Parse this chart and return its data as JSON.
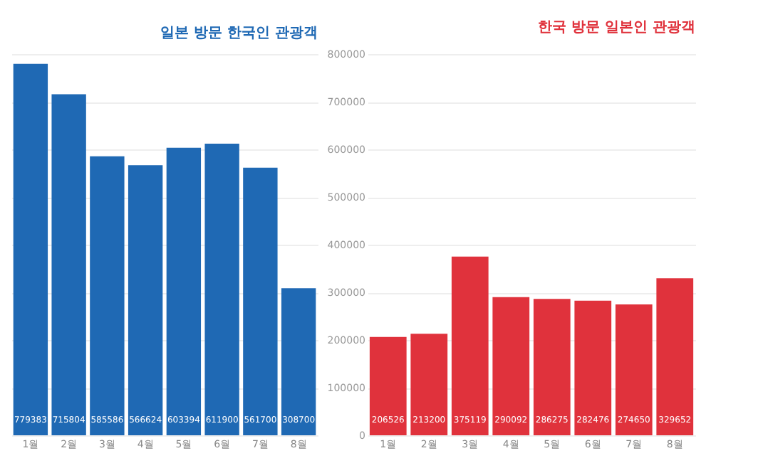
{
  "chart_data": [
    {
      "type": "bar",
      "title": "일본 방문 한국인 관광객",
      "categories": [
        "1월",
        "2월",
        "3월",
        "4월",
        "5월",
        "6월",
        "7월",
        "8월"
      ],
      "series": [
        {
          "color": "#1f69b4",
          "values": [
            779383,
            715804,
            585586,
            566624,
            603394,
            611900,
            561700,
            308700
          ]
        }
      ],
      "ylim": [
        0,
        800000
      ],
      "yticks": [
        0,
        100000,
        200000,
        300000,
        400000,
        500000,
        600000,
        700000,
        800000
      ],
      "tick_labels": "x",
      "grid": "y",
      "data_labels": true
    },
    {
      "type": "bar",
      "title": "한국 방문 일본인 관광객",
      "categories": [
        "1월",
        "2월",
        "3월",
        "4월",
        "5월",
        "6월",
        "7월",
        "8월"
      ],
      "series": [
        {
          "color": "#e0323c",
          "values": [
            206526,
            213200,
            375119,
            290092,
            286275,
            282476,
            274650,
            329652
          ]
        }
      ],
      "ylim": [
        0,
        800000
      ],
      "yticks": [
        0,
        100000,
        200000,
        300000,
        400000,
        500000,
        600000,
        700000,
        800000
      ],
      "grid": "y",
      "data_labels": true
    }
  ]
}
